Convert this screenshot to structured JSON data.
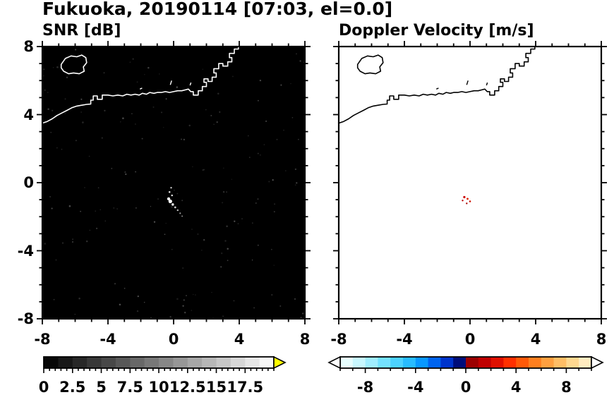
{
  "header": {
    "title": "Fukuoka, 20190114 [07:03, el=0.0]"
  },
  "chart_data": [
    {
      "type": "heatmap",
      "title": "SNR [dB]",
      "xlim": [
        -8,
        8
      ],
      "ylim": [
        -8,
        8
      ],
      "xticks": [
        -8,
        -4,
        0,
        4,
        8
      ],
      "xtick_labels": [
        "-8",
        "-4",
        "0",
        "4",
        "8"
      ],
      "yticks": [
        8,
        4,
        0,
        -4,
        -8
      ],
      "ytick_labels": [
        "8",
        "4",
        "0",
        "-4",
        "-8"
      ],
      "minor_tick_step": 1,
      "background": "#000000",
      "coast_color": "#ffffff",
      "noise_speckle": true,
      "echo_points": [
        {
          "x": -0.15,
          "y": -0.3,
          "r": 1.2,
          "color": "#c8c8c8"
        },
        {
          "x": -0.25,
          "y": -0.55,
          "r": 1.3,
          "color": "#dddddd"
        },
        {
          "x": -0.1,
          "y": -0.75,
          "r": 1.2,
          "color": "#ffffff"
        },
        {
          "x": -0.3,
          "y": -0.95,
          "r": 2.2,
          "color": "#f0f0f0"
        },
        {
          "x": -0.2,
          "y": -1.1,
          "r": 2.6,
          "color": "#ffffff"
        },
        {
          "x": -0.05,
          "y": -1.28,
          "r": 1.8,
          "color": "#e8e8e8"
        },
        {
          "x": 0.1,
          "y": -1.45,
          "r": 1.4,
          "color": "#cccccc"
        },
        {
          "x": 0.25,
          "y": -1.62,
          "r": 1.2,
          "color": "#bbbbbb"
        },
        {
          "x": 0.4,
          "y": -1.8,
          "r": 1.1,
          "color": "#999999"
        },
        {
          "x": 0.52,
          "y": -1.97,
          "r": 1.0,
          "color": "#8a8a8a"
        }
      ],
      "colorbar": {
        "min": 0,
        "max": 20,
        "tick_values": [
          0,
          2.5,
          5,
          7.5,
          10,
          12.5,
          15,
          17.5
        ],
        "tick_labels": [
          "0",
          "2.5",
          "5",
          "7.5",
          "10",
          "12.5",
          "15",
          "17.5"
        ],
        "minor_step": 0.5,
        "colormap": "grayscale",
        "segments_count": 16,
        "over_arrow": "#ffff00",
        "under_arrow": null
      }
    },
    {
      "type": "heatmap",
      "title": "Doppler Velocity [m/s]",
      "xlim": [
        -8,
        8
      ],
      "ylim": [
        -8,
        8
      ],
      "xticks": [
        -8,
        -4,
        0,
        4,
        8
      ],
      "xtick_labels": [
        "-8",
        "-4",
        "0",
        "4",
        "8"
      ],
      "yticks": [
        8,
        4,
        0,
        -4,
        -8
      ],
      "minor_tick_step": 1,
      "background": "#ffffff",
      "coast_color": "#000000",
      "noise_speckle": false,
      "echo_points": [
        {
          "x": -0.35,
          "y": -0.85,
          "r": 1.6,
          "color": "#cc0000"
        },
        {
          "x": -0.15,
          "y": -0.95,
          "r": 1.4,
          "color": "#dd2200"
        },
        {
          "x": -0.45,
          "y": -1.05,
          "r": 1.2,
          "color": "#bb0000"
        },
        {
          "x": 0.0,
          "y": -1.1,
          "r": 1.3,
          "color": "#cc1100"
        },
        {
          "x": -0.2,
          "y": -1.22,
          "r": 1.2,
          "color": "#aa0000"
        }
      ],
      "colorbar": {
        "min": -10,
        "max": 10,
        "tick_values": [
          -8,
          -4,
          0,
          4,
          8
        ],
        "tick_labels": [
          "-8",
          "-4",
          "0",
          "4",
          "8"
        ],
        "minor_step": 1,
        "colormap": "doppler",
        "segments": [
          [
            -10,
            -9,
            "#e8ffff"
          ],
          [
            -9,
            -8,
            "#c8f8ff"
          ],
          [
            -8,
            -7,
            "#a0eeff"
          ],
          [
            -7,
            -6,
            "#74e2ff"
          ],
          [
            -6,
            -5,
            "#4cd2ff"
          ],
          [
            -5,
            -4,
            "#28bcff"
          ],
          [
            -4,
            -3,
            "#0898ff"
          ],
          [
            -3,
            -2,
            "#0064f0"
          ],
          [
            -2,
            -1,
            "#0034cc"
          ],
          [
            -1,
            0,
            "#000d7a"
          ],
          [
            0,
            1,
            "#9c0000"
          ],
          [
            1,
            2,
            "#c00000"
          ],
          [
            2,
            3,
            "#e01000"
          ],
          [
            3,
            4,
            "#ff3000"
          ],
          [
            4,
            5,
            "#ff5a08"
          ],
          [
            5,
            6,
            "#ff8020"
          ],
          [
            6,
            7,
            "#ffa040"
          ],
          [
            7,
            8,
            "#ffbe66"
          ],
          [
            8,
            9,
            "#ffd890"
          ],
          [
            9,
            10,
            "#ffecc0"
          ]
        ],
        "over_arrow": "#ffffff",
        "under_arrow": "#ffffff"
      }
    }
  ],
  "coastline": {
    "mainland": [
      [
        -8,
        3.5
      ],
      [
        -7.7,
        3.6
      ],
      [
        -7.4,
        3.75
      ],
      [
        -7.1,
        3.95
      ],
      [
        -6.8,
        4.1
      ],
      [
        -6.5,
        4.25
      ],
      [
        -6.2,
        4.4
      ],
      [
        -5.9,
        4.5
      ],
      [
        -5.6,
        4.55
      ],
      [
        -5.3,
        4.6
      ],
      [
        -5.05,
        4.62
      ],
      [
        -5.05,
        4.85
      ],
      [
        -4.9,
        4.85
      ],
      [
        -4.9,
        5.1
      ],
      [
        -4.65,
        5.1
      ],
      [
        -4.65,
        4.9
      ],
      [
        -4.35,
        4.9
      ],
      [
        -4.35,
        5.15
      ],
      [
        -4,
        5.15
      ],
      [
        -3.7,
        5.1
      ],
      [
        -3.4,
        5.15
      ],
      [
        -3.1,
        5.1
      ],
      [
        -2.85,
        5.2
      ],
      [
        -2.6,
        5.15
      ],
      [
        -2.35,
        5.2
      ],
      [
        -2.1,
        5.15
      ],
      [
        -1.9,
        5.25
      ],
      [
        -1.65,
        5.2
      ],
      [
        -1.45,
        5.3
      ],
      [
        -1.2,
        5.25
      ],
      [
        -1,
        5.3
      ],
      [
        -0.75,
        5.3
      ],
      [
        -0.5,
        5.35
      ],
      [
        -0.25,
        5.3
      ],
      [
        0,
        5.35
      ],
      [
        0.25,
        5.4
      ],
      [
        0.5,
        5.4
      ],
      [
        0.7,
        5.45
      ],
      [
        0.9,
        5.5
      ],
      [
        1.05,
        5.35
      ],
      [
        1.2,
        5.35
      ],
      [
        1.2,
        5.15
      ],
      [
        1.5,
        5.15
      ],
      [
        1.5,
        5.4
      ],
      [
        1.75,
        5.4
      ],
      [
        1.75,
        5.65
      ],
      [
        2,
        5.65
      ],
      [
        2,
        5.9
      ],
      [
        1.85,
        5.9
      ],
      [
        1.85,
        6.1
      ],
      [
        2.1,
        6.1
      ],
      [
        2.1,
        5.95
      ],
      [
        2.35,
        5.95
      ],
      [
        2.35,
        6.2
      ],
      [
        2.6,
        6.2
      ],
      [
        2.6,
        6.45
      ],
      [
        2.45,
        6.45
      ],
      [
        2.45,
        6.7
      ],
      [
        2.75,
        6.7
      ],
      [
        2.75,
        7
      ],
      [
        3,
        7
      ],
      [
        3,
        6.85
      ],
      [
        3.3,
        6.85
      ],
      [
        3.3,
        7.1
      ],
      [
        3.55,
        7.1
      ],
      [
        3.55,
        7.35
      ],
      [
        3.4,
        7.35
      ],
      [
        3.4,
        7.6
      ],
      [
        3.7,
        7.6
      ],
      [
        3.7,
        7.85
      ],
      [
        3.95,
        7.85
      ],
      [
        3.95,
        8.05
      ]
    ],
    "island": [
      [
        -6.85,
        6.95
      ],
      [
        -6.6,
        7.3
      ],
      [
        -6.25,
        7.45
      ],
      [
        -5.9,
        7.4
      ],
      [
        -5.6,
        7.5
      ],
      [
        -5.35,
        7.35
      ],
      [
        -5.3,
        7.05
      ],
      [
        -5.5,
        6.8
      ],
      [
        -5.45,
        6.55
      ],
      [
        -5.75,
        6.4
      ],
      [
        -6.1,
        6.45
      ],
      [
        -6.4,
        6.4
      ],
      [
        -6.7,
        6.55
      ],
      [
        -6.85,
        6.75
      ]
    ],
    "marks": [
      [
        [
          -0.2,
          5.75
        ],
        [
          -0.12,
          6.0
        ]
      ],
      [
        [
          1.0,
          5.72
        ],
        [
          1.06,
          5.88
        ]
      ],
      [
        [
          -2.05,
          5.5
        ],
        [
          -1.92,
          5.56
        ]
      ]
    ]
  }
}
